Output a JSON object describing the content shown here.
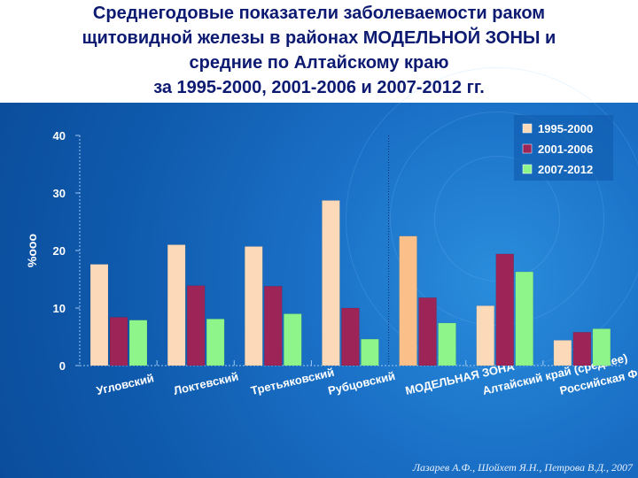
{
  "title": {
    "line1": "Среднегодовые показатели заболеваемости  раком",
    "line2": "щитовидной железы в районах МОДЕЛЬНОЙ ЗОНЫ и",
    "line3": "средние по Алтайскому краю",
    "line4": "за 1995-2000, 2001-2006 и 2007-2012 гг."
  },
  "credit": "Лазарев А.Ф., Шойхет Я.Н., Петрова В.Д., 2007",
  "chart_data": {
    "type": "bar",
    "ylabel": "%ооо",
    "ylim": [
      0,
      40
    ],
    "yticks": [
      0,
      10,
      20,
      30,
      40
    ],
    "grid": false,
    "legend_position": "top-right",
    "categories": [
      "Угловский",
      "Локтевский",
      "Третьяковский",
      "Рубцовский",
      "МОДЕЛЬНАЯ ЗОНА",
      "Алтайский край (среднее)",
      "Российская Федерация"
    ],
    "series": [
      {
        "name": "1995-2000",
        "color": "#fcd9b8",
        "values": [
          17.6,
          21.0,
          20.7,
          28.7,
          22.5,
          10.4,
          4.4
        ]
      },
      {
        "name": "2001-2006",
        "color": "#9c2457",
        "values": [
          8.4,
          13.9,
          13.8,
          10.0,
          11.8,
          19.4,
          5.8
        ]
      },
      {
        "name": "2007-2012",
        "color": "#8ef58a",
        "values": [
          7.9,
          8.1,
          9.0,
          4.6,
          7.4,
          16.3,
          6.4
        ]
      }
    ],
    "highlight_color": "#fbbf8a",
    "highlight_category": "МОДЕЛЬНАЯ ЗОНА"
  }
}
